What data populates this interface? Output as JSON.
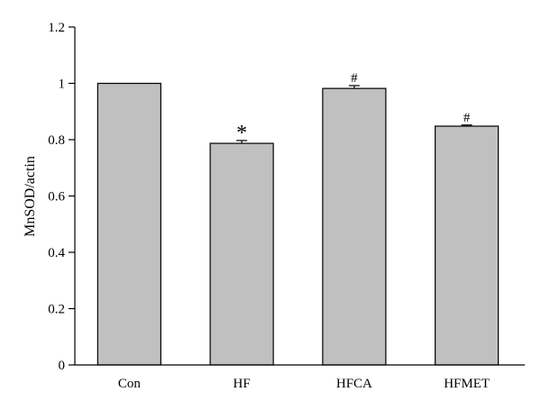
{
  "chart_data": {
    "type": "bar",
    "title": "",
    "xlabel": "",
    "ylabel": "MnSOD/actin",
    "categories": [
      "Con",
      "HF",
      "HFCA",
      "HFMET"
    ],
    "values": [
      1.0,
      0.787,
      0.982,
      0.848
    ],
    "errors": [
      0,
      0.01,
      0.01,
      0.004
    ],
    "annotations": [
      "",
      "*",
      "#",
      "#"
    ],
    "ylim": [
      0,
      1.2
    ],
    "yticks": [
      0,
      0.2,
      0.4,
      0.6,
      0.8,
      1,
      1.2
    ],
    "ytick_labels": [
      "0",
      "0.2",
      "0.4",
      "0.6",
      "0.8",
      "1",
      "1.2"
    ],
    "bar_color": "#c0c0c0",
    "grid": false,
    "legend": "none"
  }
}
